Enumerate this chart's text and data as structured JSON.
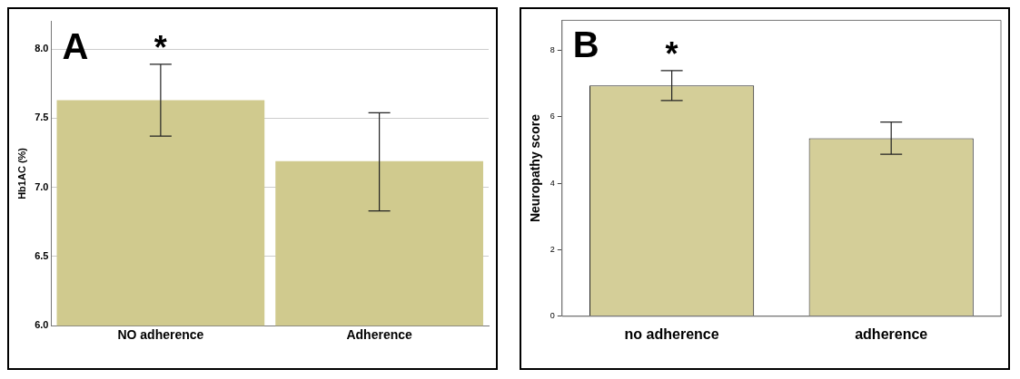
{
  "chart_data": [
    {
      "type": "bar",
      "ylabel": "Hb1AC (%)",
      "categories": [
        "NO adherence",
        "Adherence"
      ],
      "color": "#d0ca8e",
      "values": [
        7.63,
        7.19
      ],
      "errors": [
        [
          7.37,
          7.89
        ],
        [
          6.83,
          7.54
        ]
      ],
      "ylim": [
        6,
        8.2
      ],
      "yticks": [
        {
          "value": 6,
          "label": "6.0"
        },
        6.5,
        {
          "value": 7,
          "label": "7.0"
        },
        7.5,
        {
          "value": 8,
          "label": "8.0"
        }
      ],
      "grid": "y",
      "annotations": [
        "A",
        "*"
      ]
    },
    {
      "type": "bar",
      "ylabel": "Neuropathy score",
      "categories": [
        "no adherence",
        "adherence"
      ],
      "color": "#d4ce98",
      "values": [
        6.94,
        5.35
      ],
      "errors": [
        [
          6.49,
          7.39
        ],
        [
          4.87,
          5.84
        ]
      ],
      "ylim": [
        0,
        8.9
      ],
      "yticks": [
        0,
        2,
        4,
        6,
        8
      ],
      "grid": false,
      "annotations": [
        "B",
        "*"
      ]
    }
  ]
}
